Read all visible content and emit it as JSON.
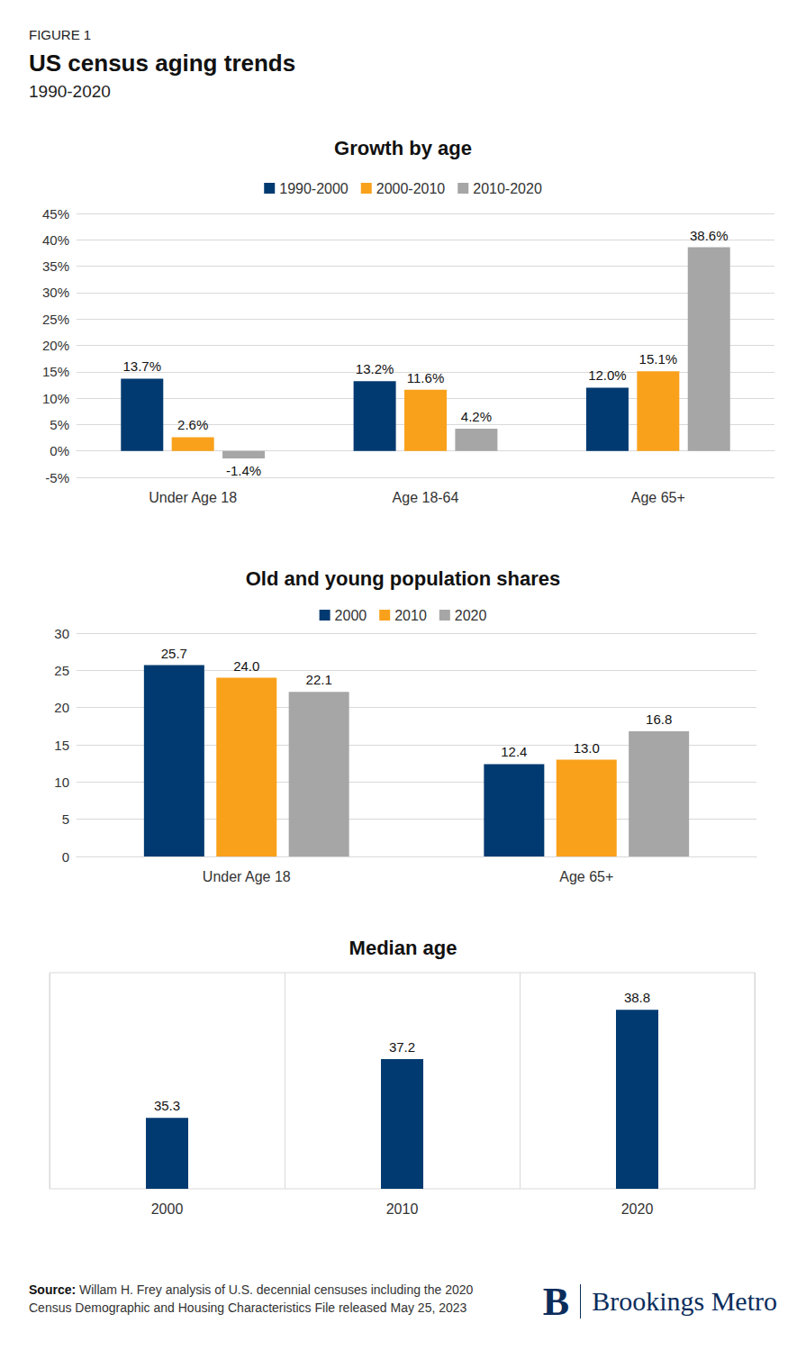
{
  "header": {
    "label": "FIGURE 1",
    "title": "US census aging trends",
    "subtitle": "1990-2020"
  },
  "chart_data": [
    {
      "type": "bar",
      "title": "Growth by age",
      "categories": [
        "Under Age 18",
        "Age 18-64",
        "Age 65+"
      ],
      "series": [
        {
          "name": "1990-2000",
          "color": "#003A70",
          "values": [
            13.7,
            13.2,
            12.0
          ],
          "value_labels": [
            "13.7%",
            "13.2%",
            "12.0%"
          ]
        },
        {
          "name": "2000-2010",
          "color": "#F9A11B",
          "values": [
            2.6,
            11.6,
            15.1
          ],
          "value_labels": [
            "2.6%",
            "11.6%",
            "15.1%"
          ]
        },
        {
          "name": "2010-2020",
          "color": "#A6A6A6",
          "values": [
            -1.4,
            4.2,
            38.6
          ],
          "value_labels": [
            "-1.4%",
            "4.2%",
            "38.6%"
          ]
        }
      ],
      "ylim": [
        -5,
        45
      ],
      "yticks": [
        {
          "value": -5,
          "label": "-5%"
        },
        {
          "value": 0,
          "label": "0%"
        },
        {
          "value": 5,
          "label": "5%"
        },
        {
          "value": 10,
          "label": "10%"
        },
        {
          "value": 15,
          "label": "15%"
        },
        {
          "value": 20,
          "label": "20%"
        },
        {
          "value": 25,
          "label": "25%"
        },
        {
          "value": 30,
          "label": "30%"
        },
        {
          "value": 35,
          "label": "35%"
        },
        {
          "value": 40,
          "label": "40%"
        },
        {
          "value": 45,
          "label": "45%"
        }
      ],
      "grid": true,
      "legend": "top",
      "data_labels": true
    },
    {
      "type": "bar",
      "title": "Old and young population shares",
      "categories": [
        "Under Age 18",
        "Age 65+"
      ],
      "series": [
        {
          "name": "2000",
          "color": "#003A70",
          "values": [
            25.7,
            12.4
          ],
          "value_labels": [
            "25.7",
            "12.4"
          ]
        },
        {
          "name": "2010",
          "color": "#F9A11B",
          "values": [
            24.0,
            13.0
          ],
          "value_labels": [
            "24.0",
            "13.0"
          ]
        },
        {
          "name": "2020",
          "color": "#A6A6A6",
          "values": [
            22.1,
            16.8
          ],
          "value_labels": [
            "22.1",
            "16.8"
          ]
        }
      ],
      "ylim": [
        0,
        30
      ],
      "yticks": [
        0,
        5,
        10,
        15,
        20,
        25,
        30
      ],
      "grid": true,
      "legend": "top",
      "data_labels": true
    },
    {
      "type": "bar",
      "title": "Median age",
      "categories": [
        "2000",
        "2010",
        "2020"
      ],
      "values": [
        35.3,
        37.2,
        38.8
      ],
      "color": "#003A70",
      "ylim": [
        33,
        40
      ],
      "grid": false,
      "tick_labels": "x",
      "data_labels": true
    }
  ],
  "footer": {
    "source_label": "Source:",
    "source_text": "Willam H. Frey analysis of U.S. decennial censuses including the 2020 Census Demographic and Housing Characteristics File released May 25, 2023",
    "logo_mark": "B",
    "logo_text": "Brookings Metro"
  }
}
